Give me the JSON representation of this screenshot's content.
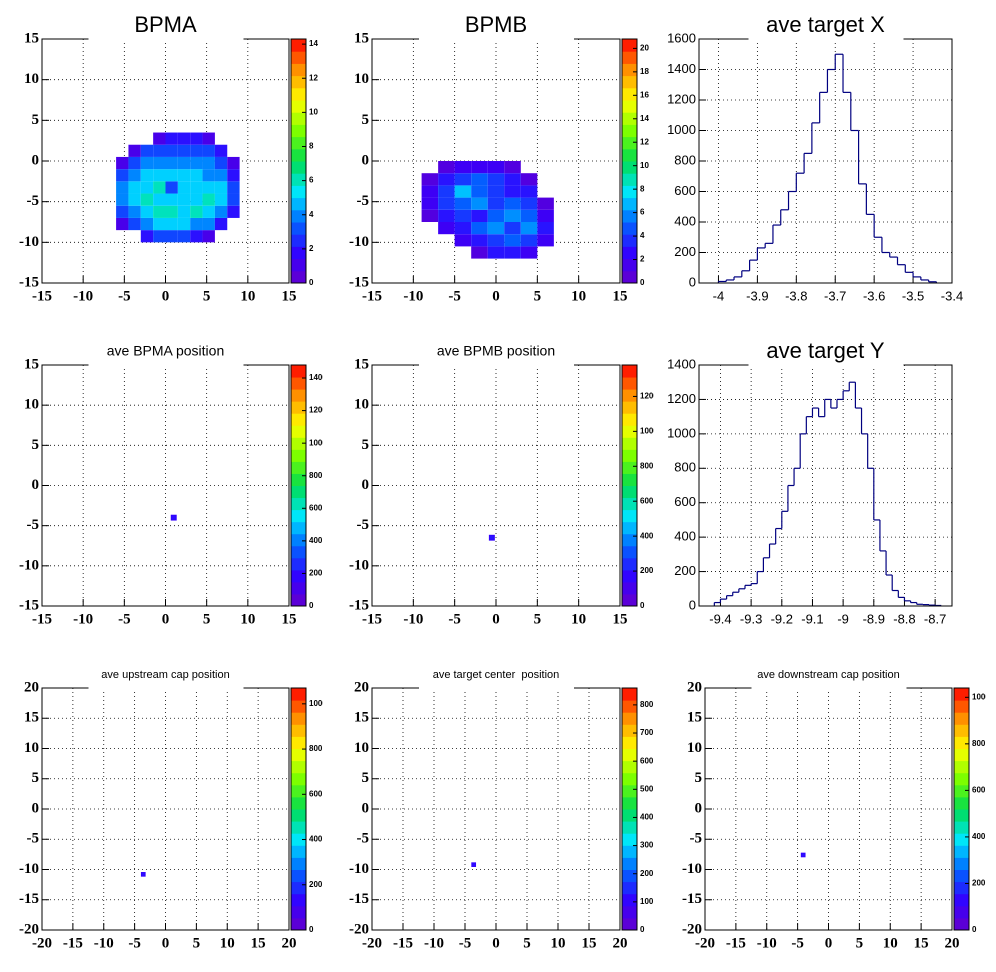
{
  "chart_data": [
    {
      "type": "heatmap",
      "title": "BPMA",
      "xlim": [
        -15,
        15
      ],
      "ylim": [
        -15,
        15
      ],
      "xticks": [
        -15,
        -10,
        -5,
        0,
        5,
        10,
        15
      ],
      "yticks": [
        -15,
        -10,
        -5,
        0,
        5,
        10,
        15
      ],
      "zlim": [
        0,
        14.3
      ],
      "zticks": [
        0,
        2,
        4,
        6,
        8,
        10,
        12,
        14
      ],
      "grid": true,
      "xbins": [
        -6,
        -4.5,
        -3,
        -1.5,
        0,
        1.5,
        3,
        4.5,
        6,
        7.5,
        9
      ],
      "ybins": [
        -10,
        -8.5,
        -7,
        -5.5,
        -4,
        -2.5,
        -1,
        0.5,
        2,
        3.5
      ],
      "z": [
        [
          0,
          0,
          2,
          3,
          3,
          3,
          2,
          1,
          0,
          0
        ],
        [
          1,
          3,
          4,
          5,
          5,
          5,
          4,
          4,
          2,
          0
        ],
        [
          3,
          4,
          5,
          6,
          6,
          5,
          6,
          5,
          4,
          2
        ],
        [
          4,
          5,
          6,
          5,
          5,
          5,
          5,
          6,
          5,
          3
        ],
        [
          4,
          5,
          5,
          6,
          3,
          5,
          5,
          5,
          5,
          3
        ],
        [
          3,
          4,
          5,
          5,
          5,
          5,
          5,
          4,
          4,
          2
        ],
        [
          1,
          3,
          4,
          4,
          4,
          4,
          4,
          4,
          3,
          1
        ],
        [
          0,
          1,
          3,
          3,
          3,
          3,
          3,
          3,
          2,
          0
        ],
        [
          0,
          0,
          0,
          1,
          2,
          2,
          2,
          1,
          0,
          0
        ]
      ]
    },
    {
      "type": "heatmap",
      "title": "BPMB",
      "xlim": [
        -15,
        15
      ],
      "ylim": [
        -15,
        15
      ],
      "xticks": [
        -15,
        -10,
        -5,
        0,
        5,
        10,
        15
      ],
      "yticks": [
        -15,
        -10,
        -5,
        0,
        5,
        10,
        15
      ],
      "zlim": [
        0,
        20.8
      ],
      "zticks": [
        0,
        2,
        4,
        6,
        8,
        10,
        12,
        14,
        16,
        18,
        20
      ],
      "grid": true,
      "xbins": [
        -9,
        -7,
        -5,
        -3,
        -1,
        1,
        3,
        5,
        7
      ],
      "ybins": [
        -12,
        -10.5,
        -9,
        -7.5,
        -6,
        -4.5,
        -3,
        -1.5,
        0
      ],
      "z": [
        [
          0,
          0,
          0,
          1,
          3,
          3,
          2,
          0
        ],
        [
          0,
          0,
          2,
          3,
          4,
          5,
          4,
          2
        ],
        [
          0,
          2,
          3,
          5,
          6,
          4,
          6,
          3
        ],
        [
          1,
          3,
          4,
          3,
          5,
          6,
          5,
          2
        ],
        [
          2,
          4,
          5,
          6,
          4,
          5,
          4,
          1
        ],
        [
          2,
          4,
          7,
          5,
          4,
          3,
          3,
          0
        ],
        [
          1,
          3,
          4,
          5,
          4,
          3,
          1,
          0
        ],
        [
          0,
          1,
          2,
          2,
          2,
          1,
          0,
          0
        ]
      ]
    },
    {
      "type": "histogram",
      "title": "ave target X",
      "color": "#000080",
      "xlim": [
        -4.05,
        -3.4
      ],
      "ylim": [
        0,
        1600
      ],
      "xticks": [
        -4,
        -3.9,
        -3.8,
        -3.7,
        -3.6,
        -3.5,
        -3.4
      ],
      "yticks": [
        0,
        200,
        400,
        600,
        800,
        1000,
        1200,
        1400,
        1600
      ],
      "grid": true,
      "bins": [
        -4,
        -3.98,
        -3.96,
        -3.94,
        -3.92,
        -3.9,
        -3.88,
        -3.86,
        -3.84,
        -3.82,
        -3.8,
        -3.78,
        -3.76,
        -3.74,
        -3.72,
        -3.7,
        -3.68,
        -3.66,
        -3.64,
        -3.62,
        -3.6,
        -3.58,
        -3.56,
        -3.54,
        -3.52,
        -3.5,
        -3.48,
        -3.46,
        -3.44
      ],
      "values": [
        10,
        20,
        40,
        80,
        150,
        230,
        260,
        380,
        480,
        600,
        720,
        850,
        1050,
        1250,
        1400,
        1500,
        1250,
        1000,
        650,
        450,
        300,
        200,
        170,
        120,
        70,
        40,
        20,
        8
      ]
    },
    {
      "type": "heatmap",
      "title": "ave BPMA position",
      "xlim": [
        -15,
        15
      ],
      "ylim": [
        -15,
        15
      ],
      "xticks": [
        -15,
        -10,
        -5,
        0,
        5,
        10,
        15
      ],
      "yticks": [
        -15,
        -10,
        -5,
        0,
        5,
        10,
        15
      ],
      "zlim": [
        0,
        1480
      ],
      "zticks": [
        0,
        200,
        400,
        600,
        800,
        1000,
        1200,
        1400
      ],
      "grid": true,
      "xbins": [
        0.7,
        1.3
      ],
      "ybins": [
        -4.3,
        -3.7
      ],
      "z": [
        [
          200
        ]
      ]
    },
    {
      "type": "heatmap",
      "title": "ave BPMB position",
      "xlim": [
        -15,
        15
      ],
      "ylim": [
        -15,
        15
      ],
      "xticks": [
        -15,
        -10,
        -5,
        0,
        5,
        10,
        15
      ],
      "yticks": [
        -15,
        -10,
        -5,
        0,
        5,
        10,
        15
      ],
      "zlim": [
        0,
        1380
      ],
      "zticks": [
        0,
        200,
        400,
        600,
        800,
        1000,
        1200
      ],
      "grid": true,
      "xbins": [
        -0.8,
        -0.2
      ],
      "ybins": [
        -6.8,
        -6.2
      ],
      "z": [
        [
          200
        ]
      ]
    },
    {
      "type": "histogram",
      "title": "ave target Y",
      "color": "#000080",
      "xlim": [
        -9.47,
        -8.645
      ],
      "ylim": [
        0,
        1400
      ],
      "xticks": [
        -9.4,
        -9.3,
        -9.2,
        -9.1,
        -9,
        -8.9,
        -8.8,
        -8.7
      ],
      "yticks": [
        0,
        200,
        400,
        600,
        800,
        1000,
        1200,
        1400
      ],
      "grid": true,
      "bins": [
        -9.42,
        -9.4,
        -9.38,
        -9.36,
        -9.34,
        -9.32,
        -9.3,
        -9.28,
        -9.26,
        -9.24,
        -9.22,
        -9.2,
        -9.18,
        -9.16,
        -9.14,
        -9.12,
        -9.1,
        -9.08,
        -9.06,
        -9.04,
        -9.02,
        -9,
        -8.98,
        -8.96,
        -8.94,
        -8.92,
        -8.9,
        -8.88,
        -8.86,
        -8.84,
        -8.82,
        -8.8,
        -8.78,
        -8.76,
        -8.74,
        -8.72,
        -8.7,
        -8.68
      ],
      "values": [
        20,
        40,
        60,
        80,
        100,
        120,
        130,
        200,
        280,
        360,
        450,
        550,
        700,
        800,
        1000,
        1100,
        1150,
        1100,
        1200,
        1150,
        1200,
        1250,
        1300,
        1150,
        1000,
        800,
        500,
        320,
        180,
        90,
        50,
        30,
        20,
        10,
        8,
        5,
        3
      ]
    },
    {
      "type": "heatmap",
      "title": "ave upstream cap position",
      "xlim": [
        -20,
        20
      ],
      "ylim": [
        -20,
        20
      ],
      "xticks": [
        -20,
        -15,
        -10,
        -5,
        0,
        5,
        10,
        15,
        20
      ],
      "yticks": [
        -20,
        -15,
        -10,
        -5,
        0,
        5,
        10,
        15,
        20
      ],
      "zlim": [
        0,
        1070
      ],
      "zticks": [
        0,
        200,
        400,
        600,
        800,
        1000
      ],
      "grid": true,
      "xbins": [
        -3.9,
        -3.3
      ],
      "ybins": [
        -11.1,
        -10.5
      ],
      "z": [
        [
          150
        ]
      ]
    },
    {
      "type": "heatmap",
      "title": "ave target center  position",
      "xlim": [
        -20,
        20
      ],
      "ylim": [
        -20,
        20
      ],
      "xticks": [
        -20,
        -15,
        -10,
        -5,
        0,
        5,
        10,
        15,
        20
      ],
      "yticks": [
        -20,
        -15,
        -10,
        -5,
        0,
        5,
        10,
        15,
        20
      ],
      "zlim": [
        0,
        860
      ],
      "zticks": [
        0,
        100,
        200,
        300,
        400,
        500,
        600,
        700,
        800
      ],
      "grid": true,
      "xbins": [
        -3.9,
        -3.3
      ],
      "ybins": [
        -9.5,
        -8.9
      ],
      "z": [
        [
          120
        ]
      ]
    },
    {
      "type": "heatmap",
      "title": "ave downstream cap position",
      "xlim": [
        -20,
        20
      ],
      "ylim": [
        -20,
        20
      ],
      "xticks": [
        -20,
        -15,
        -10,
        -5,
        0,
        5,
        10,
        15,
        20
      ],
      "yticks": [
        -20,
        -15,
        -10,
        -5,
        0,
        5,
        10,
        15,
        20
      ],
      "zlim": [
        0,
        1040
      ],
      "zticks": [
        0,
        200,
        400,
        600,
        800,
        1000
      ],
      "grid": true,
      "xbins": [
        -4.4,
        -3.8
      ],
      "ybins": [
        -7.9,
        -7.3
      ],
      "z": [
        [
          150
        ]
      ]
    }
  ]
}
